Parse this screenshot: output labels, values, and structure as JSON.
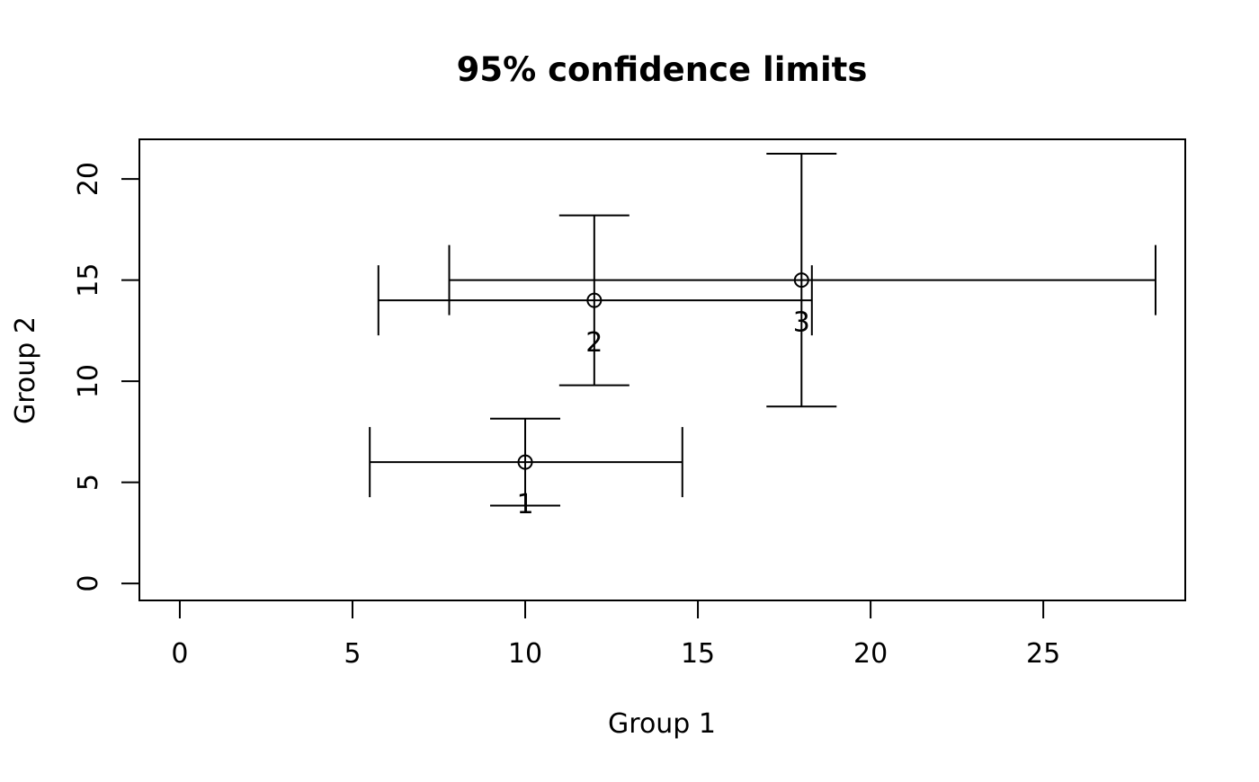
{
  "chart_data": {
    "type": "scatter",
    "subtype": "errorbar-xy",
    "title": "95% confidence limits",
    "xlabel": "Group 1",
    "ylabel": "Group 2",
    "x_ticks": [
      0,
      5,
      10,
      15,
      20,
      25
    ],
    "y_ticks": [
      0,
      5,
      10,
      15,
      20
    ],
    "xlim": [
      -1.17,
      29.11
    ],
    "ylim": [
      -0.84,
      21.96
    ],
    "grid": false,
    "legend": null,
    "marker": "open-circle",
    "points": [
      {
        "label": "1",
        "x": 10,
        "y": 6,
        "x_lower": 5.5,
        "x_upper": 14.55,
        "y_lower": 3.85,
        "y_upper": 8.15
      },
      {
        "label": "2",
        "x": 12,
        "y": 14,
        "x_lower": 5.75,
        "x_upper": 18.3,
        "y_lower": 9.8,
        "y_upper": 18.2
      },
      {
        "label": "3",
        "x": 18,
        "y": 15,
        "x_lower": 7.8,
        "x_upper": 28.25,
        "y_lower": 8.75,
        "y_upper": 21.25
      }
    ]
  },
  "colors": {
    "foreground": "#000000",
    "background": "#ffffff"
  }
}
